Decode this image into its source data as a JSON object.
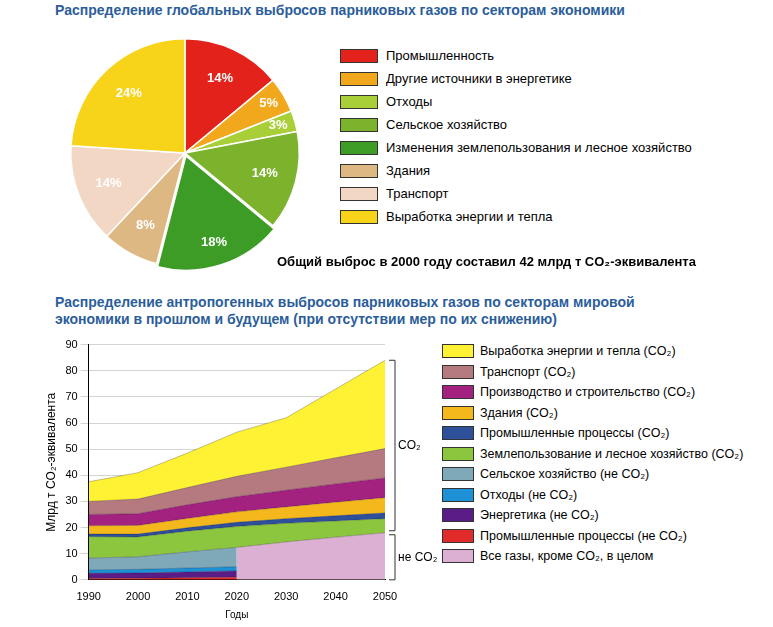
{
  "chart_data": [
    {
      "type": "pie",
      "title": "Распределение глобальных выбросов парниковых газов по секторам экономики",
      "categories": [
        "Промышленность",
        "Другие источники в энергетике",
        "Отходы",
        "Сельское хозяйство",
        "Изменения землепользования и лесное хозяйство",
        "Здания",
        "Транспорт",
        "Выработка энергии и тепла"
      ],
      "values": [
        14,
        5,
        3,
        14,
        18,
        8,
        14,
        24
      ],
      "value_labels": [
        "14%",
        "5%",
        "3%",
        "14%",
        "18%",
        "8%",
        "14%",
        "24%"
      ],
      "colors": [
        "#e3231b",
        "#f2a81d",
        "#a9cf38",
        "#7cb22c",
        "#3c9c26",
        "#ddb883",
        "#f3d7c5",
        "#f7d31a"
      ],
      "data_labels": true,
      "legend": "right",
      "annotations": [
        "Общий выброс в 2000 году составил 42 млрд т CO₂-эквивалента"
      ]
    },
    {
      "type": "area",
      "title": "Распределение антропогенных выбросов парниковых газов по секторам мировой экономики в прошлом и будущем (при отсутствии мер по их снижению)",
      "x_label": "Годы",
      "y_label": "Млрд т CO₂-эквивалента",
      "x": [
        1990,
        2000,
        2010,
        2020,
        2030,
        2040,
        2050
      ],
      "series": [
        {
          "name": "Выработка энергии и тепла (CO₂)",
          "color": "#fff133",
          "values": [
            7.5,
            10.1,
            13.2,
            16.9,
            18.9,
            26.3,
            33.8
          ]
        },
        {
          "name": "Транспорт (CO₂)",
          "color": "#b47a80",
          "values": [
            5.0,
            5.6,
            6.6,
            7.8,
            8.8,
            10.0,
            11.2
          ]
        },
        {
          "name": "Производство и строительство (CO₂)",
          "color": "#a3217f",
          "values": [
            4.3,
            4.5,
            5.2,
            5.8,
            6.4,
            7.0,
            7.6
          ]
        },
        {
          "name": "Здания (CO₂)",
          "color": "#f4b81c",
          "values": [
            3.2,
            3.3,
            3.6,
            4.0,
            4.5,
            5.2,
            5.8
          ]
        },
        {
          "name": "Промышленные процессы (CO₂)",
          "color": "#2e4f9a",
          "values": [
            1.0,
            1.1,
            1.3,
            1.6,
            1.8,
            2.0,
            2.2
          ]
        },
        {
          "name": "Землепользование и лесное хозяйство (CO₂)",
          "color": "#8cc63f",
          "values": [
            8.2,
            7.6,
            7.9,
            8.0,
            7.1,
            6.2,
            5.4
          ]
        },
        {
          "name": "Сельское хозяйство (не CO₂)",
          "color": "#7fa8b8",
          "values": [
            4.5,
            4.8,
            6.2,
            7.4,
            null,
            null,
            null
          ]
        },
        {
          "name": "Отходы (не CO₂)",
          "color": "#1e90d6",
          "values": [
            1.3,
            1.4,
            1.5,
            1.6,
            null,
            null,
            null
          ]
        },
        {
          "name": "Энергетика (не CO₂)",
          "color": "#5a1d87",
          "values": [
            2.0,
            2.0,
            2.2,
            2.4,
            null,
            null,
            null
          ]
        },
        {
          "name": "Промышленные процессы (не CO₂)",
          "color": "#e12a2a",
          "values": [
            0.5,
            0.6,
            0.8,
            1.0,
            null,
            null,
            null
          ]
        },
        {
          "name": "Все газы, кроме CO₂, в целом",
          "color": "#dbb0d3",
          "values": [
            null,
            null,
            null,
            12.4,
            14.5,
            16.3,
            18.0
          ]
        }
      ],
      "xlim": [
        1990,
        2050
      ],
      "xticks": [
        1990,
        2000,
        2010,
        2020,
        2030,
        2040,
        2050
      ],
      "ylim": [
        0,
        90
      ],
      "yticks": [
        0,
        10,
        20,
        30,
        40,
        50,
        60,
        70,
        80,
        90
      ],
      "stacked": true,
      "grid": true,
      "legend": "right",
      "annotations": [
        "CO₂",
        "не CO₂"
      ]
    }
  ]
}
